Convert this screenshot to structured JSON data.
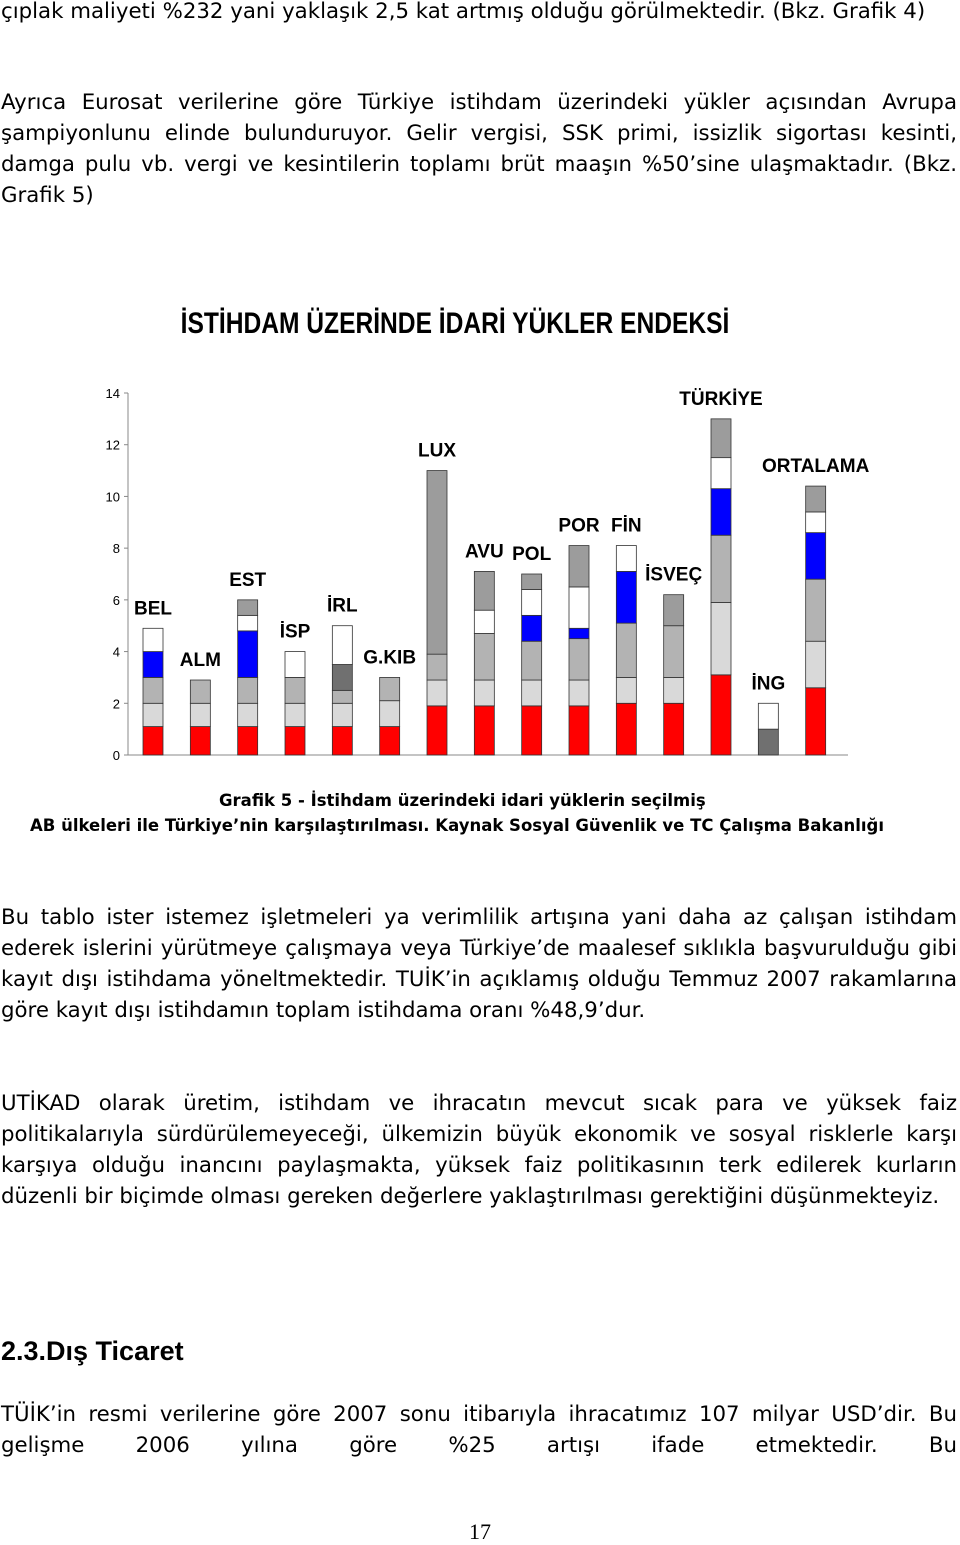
{
  "paragraphs_before": [
    "çıplak maliyeti %232 yani yaklaşık 2,5 kat artmış olduğu görülmektedir. (Bkz. Grafik 4)",
    "Ayrıca Eurosat verilerine göre Türkiye istihdam üzerindeki yükler açısından Avrupa şampiyonlunu elinde bulunduruyor. Gelir vergisi, SSK primi, issizlik sigortası kesinti, damga pulu vb. vergi ve kesintilerin toplamı brüt maaşın %50’sine ulaşmaktadır. (Bkz. Grafik 5)"
  ],
  "chart_data": {
    "type": "bar",
    "stacked": true,
    "title": "İSTİHDAM ÜZERİNDE İDARİ YÜKLER ENDEKSİ",
    "categories": [
      "BEL",
      "ALM",
      "EST",
      "İSP",
      "İRL",
      "G.KIB",
      "LUX",
      "AVU",
      "POL",
      "POR",
      "FİN",
      "İSVEÇ",
      "TÜRKİYE",
      "İNG",
      "ORTALAMA"
    ],
    "series": [
      {
        "color": "#ff0000",
        "values": [
          1.1,
          1.1,
          1.1,
          1.1,
          1.1,
          1.1,
          1.9,
          1.9,
          1.9,
          1.9,
          2.0,
          2.0,
          3.1,
          0,
          2.6
        ]
      },
      {
        "color": "#d9d9d9",
        "values": [
          0.9,
          0.9,
          0.9,
          0.9,
          0.9,
          1.0,
          1.0,
          1.0,
          1.0,
          1.0,
          1.0,
          1.0,
          2.8,
          0,
          1.8
        ]
      },
      {
        "color": "#b3b3b3",
        "values": [
          1.0,
          0.9,
          1.0,
          1.0,
          0.5,
          0.9,
          1.0,
          1.8,
          1.5,
          1.6,
          2.1,
          2.0,
          2.6,
          0,
          2.4
        ]
      },
      {
        "color": "#707070",
        "values": [
          0,
          0,
          0,
          0,
          1.0,
          0,
          0,
          0,
          0,
          0,
          0,
          0,
          0,
          1.0,
          0
        ]
      },
      {
        "color": "#0000ff",
        "values": [
          1.0,
          0,
          1.8,
          0,
          0,
          0,
          0,
          0,
          1.0,
          0.4,
          2.0,
          0,
          1.8,
          0,
          1.8
        ]
      },
      {
        "color": "#ffffff",
        "values": [
          0.9,
          0,
          0.6,
          1.0,
          1.5,
          0,
          0,
          0.9,
          1.0,
          1.6,
          1.0,
          0,
          1.2,
          1.0,
          0.8
        ]
      },
      {
        "color": "#9c9c9c",
        "values": [
          0,
          0,
          0.6,
          0,
          0,
          0,
          7.1,
          1.5,
          0.6,
          1.6,
          0,
          1.2,
          1.5,
          0,
          1.0
        ]
      }
    ],
    "ylim": [
      0,
      14
    ],
    "yticks": [
      0,
      2,
      4,
      6,
      8,
      10,
      12,
      14
    ]
  },
  "caption": [
    "Grafik 5 - İstihdam üzerindeki idari yüklerin seçilmiş",
    "AB ülkeleri ile Türkiye’nin karşılaştırılması. Kaynak Sosyal Güvenlik ve TC Çalışma Bakanlığı"
  ],
  "paragraphs_after": [
    "Bu tablo ister istemez işletmeleri ya verimlilik artışına yani daha az çalışan istihdam ederek islerini yürütmeye çalışmaya veya Türkiye’de maalesef sıklıkla başvurulduğu gibi kayıt dışı istihdama yöneltmektedir. TUİK’in açıklamış olduğu Temmuz 2007 rakamlarına göre kayıt dışı istihdamın toplam istihdama oranı %48,9’dur.",
    "UTİKAD olarak üretim, istihdam ve ihracatın mevcut sıcak para ve yüksek faiz politikalarıyla sürdürülemeyeceği, ülkemizin büyük ekonomik ve sosyal risklerle karşı karşıya olduğu inancını paylaşmakta, yüksek faiz politikasının terk edilerek kurların düzenli bir biçimde olması gereken değerlere yaklaştırılması gerektiğini düşünmekteyiz."
  ],
  "heading": "2.3.Dış Ticaret",
  "final_paragraph": "TÜİK’in resmi verilerine göre 2007 sonu itibarıyla ihracatımız 107 milyar USD’dir. Bu gelişme 2006 yılına göre %25 artışı ifade etmektedir. Bu",
  "page_number": "17"
}
